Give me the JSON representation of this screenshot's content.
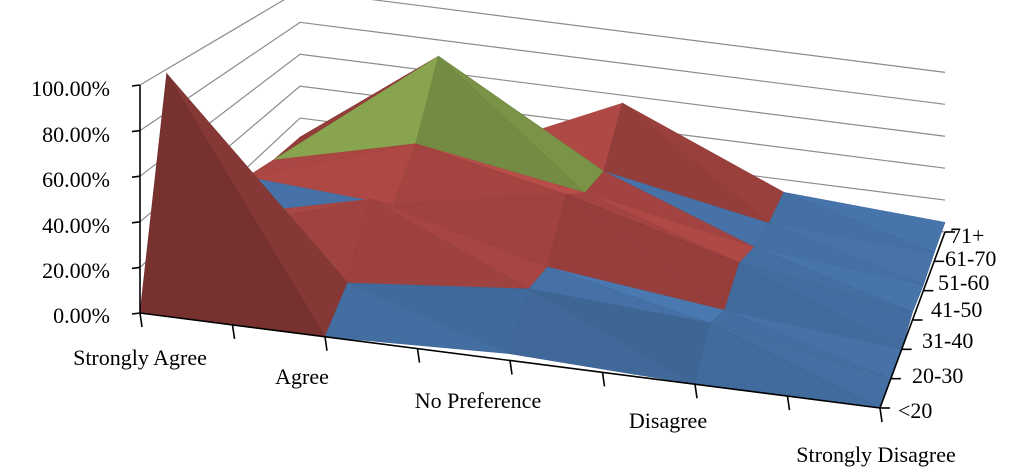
{
  "chart_data": {
    "type": "surface",
    "title": "",
    "xlabel": "",
    "ylabel": "",
    "zlabel": "",
    "categories": [
      "Strongly Agree",
      "Agree",
      "No Preference",
      "Disagree",
      "Strongly Disagree"
    ],
    "series_depth": [
      "<20",
      "20-30",
      "31-40",
      "41-50",
      "51-60",
      "61-70",
      "71+"
    ],
    "ylim": [
      0,
      100
    ],
    "y_ticks": [
      "0.00%",
      "20.00%",
      "40.00%",
      "60.00%",
      "80.00%",
      "100.00%"
    ],
    "values": [
      [
        0,
        0,
        3,
        0,
        0
      ],
      [
        98,
        12,
        20,
        15,
        0
      ],
      [
        12,
        40,
        18,
        8,
        0
      ],
      [
        8,
        25,
        42,
        18,
        4
      ],
      [
        15,
        45,
        30,
        12,
        3
      ],
      [
        10,
        83,
        28,
        10,
        5
      ],
      [
        8,
        10,
        55,
        12,
        6
      ]
    ],
    "band_colors": [
      "#4f81bd",
      "#c0504d",
      "#9bbb59",
      "#8064a2",
      "#4bacc6"
    ],
    "grid": true,
    "legend": "none"
  }
}
